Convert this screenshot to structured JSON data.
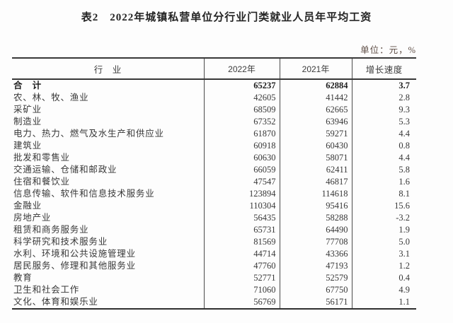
{
  "page": {
    "title": "表2　2022年城镇私营单位分行业门类就业人员年平均工资",
    "unit_note": "单位：元，%"
  },
  "table": {
    "headers": {
      "industry": "行　业",
      "y2022": "2022年",
      "y2021": "2021年",
      "growth": "增长速度"
    },
    "rows": [
      {
        "industry": "合　计",
        "y2022": "65237",
        "y2021": "62884",
        "growth": "3.7",
        "bold": true
      },
      {
        "industry": "农、林、牧、渔业",
        "y2022": "42605",
        "y2021": "41442",
        "growth": "2.8",
        "bold": false
      },
      {
        "industry": "采矿业",
        "y2022": "68509",
        "y2021": "62665",
        "growth": "9.3",
        "bold": false
      },
      {
        "industry": "制造业",
        "y2022": "67352",
        "y2021": "63946",
        "growth": "5.3",
        "bold": false
      },
      {
        "industry": "电力、热力、燃气及水生产和供应业",
        "y2022": "61870",
        "y2021": "59271",
        "growth": "4.4",
        "bold": false
      },
      {
        "industry": "建筑业",
        "y2022": "60918",
        "y2021": "60430",
        "growth": "0.8",
        "bold": false
      },
      {
        "industry": "批发和零售业",
        "y2022": "60630",
        "y2021": "58071",
        "growth": "4.4",
        "bold": false
      },
      {
        "industry": "交通运输、仓储和邮政业",
        "y2022": "66059",
        "y2021": "62411",
        "growth": "5.8",
        "bold": false
      },
      {
        "industry": "住宿和餐饮业",
        "y2022": "47547",
        "y2021": "46817",
        "growth": "1.6",
        "bold": false
      },
      {
        "industry": "信息传输、软件和信息技术服务业",
        "y2022": "123894",
        "y2021": "114618",
        "growth": "8.1",
        "bold": false
      },
      {
        "industry": "金融业",
        "y2022": "110304",
        "y2021": "95416",
        "growth": "15.6",
        "bold": false
      },
      {
        "industry": "房地产业",
        "y2022": "56435",
        "y2021": "58288",
        "growth": "-3.2",
        "bold": false
      },
      {
        "industry": "租赁和商务服务业",
        "y2022": "65731",
        "y2021": "64490",
        "growth": "1.9",
        "bold": false
      },
      {
        "industry": "科学研究和技术服务业",
        "y2022": "81569",
        "y2021": "77708",
        "growth": "5.0",
        "bold": false
      },
      {
        "industry": "水利、环境和公共设施管理业",
        "y2022": "44714",
        "y2021": "43366",
        "growth": "3.1",
        "bold": false
      },
      {
        "industry": "居民服务、修理和其他服务业",
        "y2022": "47760",
        "y2021": "47193",
        "growth": "1.2",
        "bold": false
      },
      {
        "industry": "教育",
        "y2022": "52771",
        "y2021": "52579",
        "growth": "0.4",
        "bold": false
      },
      {
        "industry": "卫生和社会工作",
        "y2022": "71060",
        "y2021": "67750",
        "growth": "4.9",
        "bold": false
      },
      {
        "industry": "文化、体育和娱乐业",
        "y2022": "56769",
        "y2021": "56171",
        "growth": "1.1",
        "bold": false
      }
    ]
  }
}
